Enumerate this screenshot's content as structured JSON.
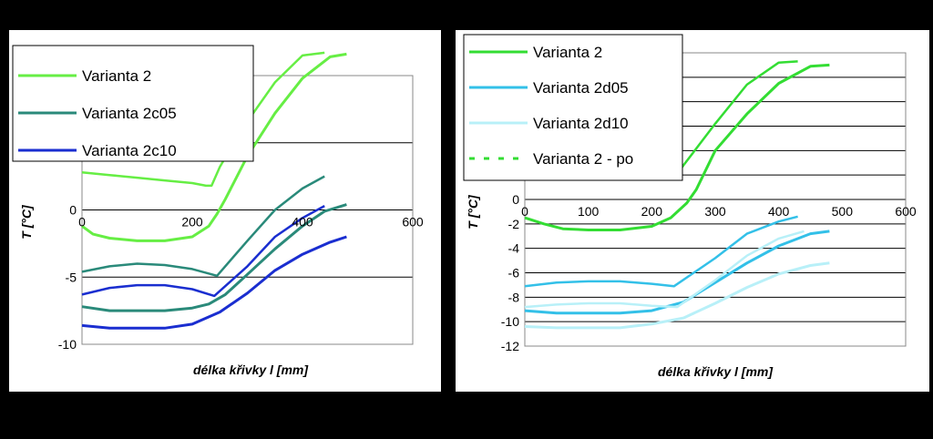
{
  "chart_data": [
    {
      "type": "line",
      "title": "",
      "xlabel": "délka křivky l  [mm]",
      "ylabel": "T [°C]",
      "xlim": [
        0,
        600
      ],
      "ylim": [
        -10,
        10
      ],
      "xticks": [
        "0",
        "200",
        "400",
        "600"
      ],
      "yticks": [
        "-10",
        "-5",
        "0",
        "5"
      ],
      "grid": "horizontal",
      "legend_position": "top-left",
      "series": [
        {
          "name": "Varianta 2",
          "color": "#66ee44",
          "lines": [
            {
              "x": [
                0,
                50,
                100,
                150,
                200,
                225,
                235,
                250,
                290,
                350,
                400,
                440
              ],
              "y": [
                2.8,
                2.6,
                2.4,
                2.2,
                2.0,
                1.8,
                1.8,
                3.2,
                6.0,
                9.5,
                11.5,
                11.7
              ]
            },
            {
              "x": [
                0,
                20,
                50,
                100,
                150,
                200,
                230,
                245,
                260,
                300,
                350,
                400,
                450,
                480
              ],
              "y": [
                -1.2,
                -1.8,
                -2.1,
                -2.3,
                -2.3,
                -2.0,
                -1.2,
                -0.3,
                0.8,
                4.0,
                7.2,
                9.8,
                11.4,
                11.6
              ]
            }
          ]
        },
        {
          "name": "Varianta 2c05",
          "color": "#2a8a7a",
          "lines": [
            {
              "x": [
                0,
                50,
                100,
                150,
                200,
                245,
                300,
                350,
                400,
                440
              ],
              "y": [
                -4.6,
                -4.2,
                -4.0,
                -4.1,
                -4.4,
                -4.9,
                -2.3,
                0.0,
                1.6,
                2.5
              ]
            },
            {
              "x": [
                0,
                50,
                100,
                150,
                200,
                230,
                260,
                300,
                350,
                400,
                440,
                480
              ],
              "y": [
                -7.2,
                -7.5,
                -7.5,
                -7.5,
                -7.3,
                -7.0,
                -6.3,
                -4.8,
                -2.9,
                -1.2,
                -0.1,
                0.4
              ]
            }
          ]
        },
        {
          "name": "Varianta 2c10",
          "color": "#1a2ed0",
          "lines": [
            {
              "x": [
                0,
                50,
                100,
                150,
                200,
                240,
                300,
                350,
                400,
                440
              ],
              "y": [
                -6.3,
                -5.8,
                -5.6,
                -5.6,
                -5.9,
                -6.4,
                -4.2,
                -2.0,
                -0.6,
                0.3
              ]
            },
            {
              "x": [
                0,
                50,
                100,
                150,
                200,
                250,
                300,
                350,
                400,
                450,
                480
              ],
              "y": [
                -8.6,
                -8.8,
                -8.8,
                -8.8,
                -8.5,
                -7.6,
                -6.2,
                -4.5,
                -3.3,
                -2.4,
                -2.0
              ]
            }
          ]
        }
      ]
    },
    {
      "type": "line",
      "title": "",
      "xlabel": "délka křivky  l  [mm]",
      "ylabel": "T [°C]",
      "xlim": [
        0,
        600
      ],
      "ylim": [
        -12,
        12
      ],
      "xticks": [
        "0",
        "100",
        "200",
        "300",
        "400",
        "500",
        "600"
      ],
      "yticks": [
        "-12",
        "-10",
        "-8",
        "-6",
        "-4",
        "-2",
        "0",
        "2"
      ],
      "grid": "horizontal",
      "legend_position": "top-left",
      "series": [
        {
          "name": "Varianta 2",
          "color": "#33dd33",
          "lines": [
            {
              "x": [
                0,
                50,
                100,
                150,
                200,
                235,
                250,
                300,
                350,
                400,
                430
              ],
              "y": [
                2.8,
                2.5,
                2.3,
                2.1,
                2.0,
                1.7,
                2.8,
                6.2,
                9.4,
                11.2,
                11.3
              ]
            },
            {
              "x": [
                0,
                30,
                60,
                100,
                150,
                200,
                230,
                255,
                270,
                300,
                350,
                400,
                450,
                480
              ],
              "y": [
                -1.5,
                -2.0,
                -2.4,
                -2.5,
                -2.5,
                -2.2,
                -1.5,
                -0.3,
                0.8,
                4.0,
                7.0,
                9.5,
                10.9,
                11.0
              ]
            }
          ]
        },
        {
          "name": "Varianta 2d05",
          "color": "#33c0e8",
          "lines": [
            {
              "x": [
                0,
                50,
                100,
                150,
                200,
                235,
                300,
                350,
                400,
                430
              ],
              "y": [
                -7.1,
                -6.8,
                -6.7,
                -6.7,
                -6.9,
                -7.1,
                -4.8,
                -2.8,
                -1.8,
                -1.4
              ]
            },
            {
              "x": [
                0,
                50,
                100,
                150,
                200,
                250,
                300,
                350,
                400,
                450,
                480
              ],
              "y": [
                -9.1,
                -9.3,
                -9.3,
                -9.3,
                -9.1,
                -8.4,
                -6.8,
                -5.2,
                -3.8,
                -2.8,
                -2.6
              ]
            }
          ]
        },
        {
          "name": "Varianta 2d10",
          "color": "#b8f0f8",
          "lines": [
            {
              "x": [
                0,
                50,
                100,
                150,
                200,
                240,
                300,
                350,
                400,
                440
              ],
              "y": [
                -8.8,
                -8.6,
                -8.5,
                -8.5,
                -8.7,
                -8.8,
                -6.6,
                -4.6,
                -3.2,
                -2.6
              ]
            },
            {
              "x": [
                0,
                50,
                100,
                150,
                200,
                250,
                300,
                350,
                400,
                450,
                480
              ],
              "y": [
                -10.4,
                -10.5,
                -10.5,
                -10.5,
                -10.2,
                -9.7,
                -8.5,
                -7.2,
                -6.1,
                -5.4,
                -5.2
              ]
            }
          ]
        },
        {
          "name": "Varianta 2 - po",
          "color": "#33dd33",
          "dashed": true,
          "lines": []
        }
      ]
    }
  ]
}
